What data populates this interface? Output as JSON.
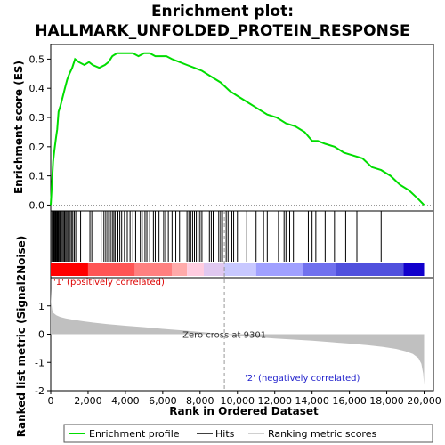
{
  "chart_data": [
    {
      "type": "line",
      "title_line1": "Enrichment plot:",
      "title_line2": "HALLMARK_UNFOLDED_PROTEIN_RESPONSE",
      "ylabel": "Enrichment score (ES)",
      "ylim": [
        -0.02,
        0.55
      ],
      "yticks": [
        0.0,
        0.1,
        0.2,
        0.3,
        0.4,
        0.5
      ],
      "ytick_labels": [
        "0.0",
        "0.1",
        "0.2",
        "0.3",
        "0.4",
        "0.5"
      ],
      "xlim": [
        0,
        20500
      ],
      "grid": false,
      "line_color": "#00dd00",
      "series": [
        {
          "name": "Enrichment profile",
          "x": [
            0,
            60,
            130,
            200,
            280,
            350,
            420,
            520,
            640,
            760,
            880,
            1000,
            1150,
            1300,
            1500,
            1800,
            2050,
            2250,
            2600,
            2900,
            3100,
            3300,
            3550,
            3800,
            4100,
            4400,
            4700,
            5000,
            5300,
            5600,
            5900,
            6200,
            6500,
            6900,
            7300,
            7700,
            8100,
            8600,
            9100,
            9600,
            10100,
            10600,
            11100,
            11600,
            12100,
            12600,
            13100,
            13600,
            14000,
            14300,
            14700,
            15200,
            15700,
            16200,
            16700,
            17200,
            17700,
            18200,
            18700,
            19200,
            19700,
            20000
          ],
          "y": [
            0.0,
            0.07,
            0.15,
            0.19,
            0.23,
            0.26,
            0.32,
            0.34,
            0.37,
            0.4,
            0.43,
            0.45,
            0.47,
            0.5,
            0.49,
            0.48,
            0.49,
            0.48,
            0.47,
            0.48,
            0.49,
            0.51,
            0.52,
            0.52,
            0.52,
            0.52,
            0.51,
            0.52,
            0.52,
            0.51,
            0.51,
            0.51,
            0.5,
            0.49,
            0.48,
            0.47,
            0.46,
            0.44,
            0.42,
            0.39,
            0.37,
            0.35,
            0.33,
            0.31,
            0.3,
            0.28,
            0.27,
            0.25,
            0.22,
            0.22,
            0.21,
            0.2,
            0.18,
            0.17,
            0.16,
            0.13,
            0.12,
            0.1,
            0.07,
            0.05,
            0.02,
            0.0
          ]
        }
      ]
    },
    {
      "type": "hits",
      "name": "Hits",
      "xlim": [
        0,
        20500
      ],
      "hit_positions": [
        60,
        110,
        150,
        190,
        240,
        270,
        300,
        340,
        380,
        420,
        470,
        510,
        560,
        620,
        680,
        740,
        800,
        860,
        920,
        980,
        1040,
        1110,
        1180,
        1260,
        1340,
        1600,
        2100,
        2200,
        2700,
        2850,
        2950,
        3050,
        3200,
        3300,
        3380,
        3450,
        3600,
        3700,
        3800,
        3950,
        4100,
        4250,
        4400,
        4550,
        4800,
        4900,
        5050,
        5150,
        5300,
        5500,
        5600,
        5800,
        6050,
        6150,
        6300,
        6500,
        6700,
        6900,
        7300,
        7400,
        7500,
        7600,
        7700,
        7800,
        7900,
        8000,
        8100,
        8500,
        8600,
        8700,
        9000,
        9100,
        9200,
        9400,
        9500,
        9700,
        9800,
        10000,
        10500,
        11000,
        11400,
        11600,
        12200,
        12500,
        12600,
        12800,
        13000,
        13800,
        14000,
        14200,
        14700,
        15200,
        15800,
        16400,
        17700
      ],
      "colorbar": {
        "colors": [
          "#ff0000",
          "#ff5555",
          "#ff8080",
          "#ffaaaa",
          "#ffcce0",
          "#e0c8f0",
          "#c8c8ff",
          "#a0a0ff",
          "#7070ee",
          "#5050dd",
          "#1100cc"
        ],
        "segment_ends": [
          2000,
          4500,
          6500,
          7300,
          8200,
          9300,
          11000,
          13500,
          15300,
          18900,
          20000
        ]
      }
    },
    {
      "type": "area",
      "name": "Ranking metric scores",
      "xlabel": "Rank in Ordered Dataset",
      "ylabel": "Ranked list metric (Signal2Noise)",
      "ylim": [
        -2,
        2
      ],
      "yticks": [
        -2,
        -1,
        0,
        1
      ],
      "ytick_labels": [
        "-2",
        "-1",
        "0",
        "1"
      ],
      "xlim": [
        0,
        20500
      ],
      "xticks": [
        0,
        2000,
        4000,
        6000,
        8000,
        10000,
        12000,
        14000,
        16000,
        18000,
        20000
      ],
      "xtick_labels": [
        "0",
        "2,000",
        "4,000",
        "6,000",
        "8,000",
        "10,000",
        "12,000",
        "14,000",
        "16,000",
        "18,000",
        "20,000"
      ],
      "fill_color": "#c0c0c0",
      "x": [
        0,
        30,
        80,
        150,
        300,
        500,
        800,
        1200,
        1700,
        2300,
        3000,
        4000,
        5000,
        6000,
        7000,
        8000,
        8700,
        9301,
        10000,
        11000,
        12000,
        13000,
        14000,
        15000,
        16000,
        17000,
        17800,
        18500,
        19000,
        19400,
        19700,
        19850,
        19950,
        20000
      ],
      "y": [
        1.6,
        1.1,
        0.85,
        0.75,
        0.67,
        0.61,
        0.56,
        0.51,
        0.46,
        0.41,
        0.36,
        0.3,
        0.25,
        0.19,
        0.14,
        0.08,
        0.04,
        0.0,
        -0.05,
        -0.1,
        -0.15,
        -0.19,
        -0.23,
        -0.28,
        -0.33,
        -0.39,
        -0.45,
        -0.52,
        -0.6,
        -0.7,
        -0.85,
        -1.05,
        -1.4,
        -1.8
      ],
      "zero_cross": 9301,
      "annotations": {
        "positive": "'1' (positively correlated)",
        "negative": "'2' (negatively correlated)",
        "zero_cross": "Zero cross at 9301"
      },
      "annotation_colors": {
        "positive": "#dd0000",
        "negative": "#2222cc"
      }
    }
  ],
  "legend": {
    "items": [
      {
        "label": "Enrichment profile",
        "color": "#00dd00"
      },
      {
        "label": "Hits",
        "color": "#000000"
      },
      {
        "label": "Ranking metric scores",
        "color": "#c0c0c0"
      }
    ]
  }
}
